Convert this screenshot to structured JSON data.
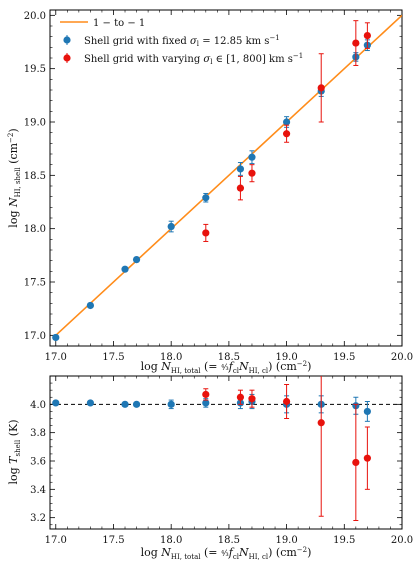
{
  "chart_data": [
    {
      "id": "top",
      "type": "scatter",
      "xlabel": "log N_HI,total (= 4/3 f_cl N_HI,cl) (cm^-2)",
      "ylabel": "log N_HI,shell (cm^-2)",
      "xlim": [
        16.95,
        20.0
      ],
      "ylim": [
        16.9,
        20.05
      ],
      "xticks": [
        17.0,
        17.5,
        18.0,
        18.5,
        19.0,
        19.5,
        20.0
      ],
      "xtick_labels": [
        "17.0",
        "17.5",
        "18.0",
        "18.5",
        "19.0",
        "19.5",
        "20.0"
      ],
      "yticks": [
        17.0,
        17.5,
        18.0,
        18.5,
        19.0,
        19.5,
        20.0
      ],
      "ytick_labels": [
        "17.0",
        "17.5",
        "18.0",
        "18.5",
        "19.0",
        "19.5",
        "20.0"
      ],
      "legend_position": "top-left",
      "legend": [
        {
          "label": "1 − to − 1",
          "kind": "line",
          "color": "#ff8c1a"
        },
        {
          "label": "Shell grid with fixed σ_l = 12.85 km s^-1",
          "kind": "point",
          "color": "#1f77b4"
        },
        {
          "label": "Shell grid with varying σ_l ∈ [1, 800] km s^-1",
          "kind": "point",
          "color": "#e8120c"
        }
      ],
      "line": {
        "name": "1 − to − 1",
        "x": [
          17.0,
          20.0
        ],
        "y": [
          17.0,
          20.0
        ],
        "color": "#ff8c1a"
      },
      "series": [
        {
          "name": "Shell grid with fixed σ_l = 12.85 km s^-1",
          "color": "#1f77b4",
          "x": [
            17.0,
            17.3,
            17.6,
            17.7,
            18.0,
            18.3,
            18.6,
            18.7,
            19.0,
            19.3,
            19.6,
            19.7
          ],
          "y": [
            16.98,
            17.28,
            17.62,
            17.71,
            18.02,
            18.29,
            18.56,
            18.67,
            19.0,
            19.29,
            19.61,
            19.72
          ],
          "err": [
            0.02,
            0.02,
            0.02,
            0.02,
            0.05,
            0.04,
            0.06,
            0.06,
            0.05,
            0.05,
            0.04,
            0.05
          ]
        },
        {
          "name": "Shell grid with varying σ_l ∈ [1, 800] km s^-1",
          "color": "#e8120c",
          "x": [
            18.3,
            18.6,
            18.7,
            19.0,
            19.3,
            19.6,
            19.7
          ],
          "y": [
            17.96,
            18.38,
            18.52,
            18.89,
            19.32,
            19.74,
            19.81
          ],
          "err": [
            0.08,
            0.11,
            0.08,
            0.08,
            0.32,
            0.21,
            0.12
          ]
        }
      ]
    },
    {
      "id": "bottom",
      "type": "scatter",
      "xlabel": "log N_HI,total (= 4/3 f_cl N_HI,cl) (cm^-2)",
      "ylabel": "log T_shell (K)",
      "xlim": [
        16.95,
        20.0
      ],
      "ylim": [
        3.12,
        4.2
      ],
      "xticks": [
        17.0,
        17.5,
        18.0,
        18.5,
        19.0,
        19.5,
        20.0
      ],
      "xtick_labels": [
        "17.0",
        "17.5",
        "18.0",
        "18.5",
        "19.0",
        "19.5",
        "20.0"
      ],
      "yticks": [
        3.2,
        3.4,
        3.6,
        3.8,
        4.0
      ],
      "ytick_labels": [
        "3.2",
        "3.4",
        "3.6",
        "3.8",
        "4.0"
      ],
      "hline": {
        "y": 4.0,
        "style": "dashed",
        "color": "#000000"
      },
      "series": [
        {
          "name": "Shell grid with fixed σ_l = 12.85 km s^-1",
          "color": "#1f77b4",
          "x": [
            17.0,
            17.3,
            17.6,
            17.7,
            18.0,
            18.3,
            18.6,
            18.7,
            19.0,
            19.3,
            19.6,
            19.7
          ],
          "y": [
            4.01,
            4.01,
            4.0,
            4.0,
            4.0,
            4.01,
            4.01,
            4.02,
            4.0,
            4.0,
            3.99,
            3.95
          ],
          "err": [
            0.01,
            0.01,
            0.01,
            0.01,
            0.03,
            0.03,
            0.04,
            0.05,
            0.06,
            0.06,
            0.06,
            0.07
          ]
        },
        {
          "name": "Shell grid with varying σ_l ∈ [1, 800] km s^-1",
          "color": "#e8120c",
          "x": [
            18.3,
            18.6,
            18.7,
            19.0,
            19.3,
            19.6,
            19.7
          ],
          "y": [
            4.07,
            4.05,
            4.04,
            4.02,
            3.87,
            3.59,
            3.62
          ],
          "err": [
            0.04,
            0.05,
            0.06,
            0.12,
            0.66,
            0.41,
            0.22
          ]
        }
      ]
    }
  ]
}
